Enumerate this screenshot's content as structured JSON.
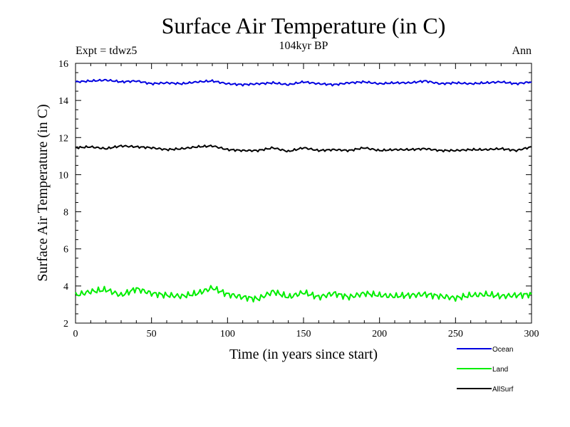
{
  "chart_data": {
    "type": "line",
    "title": "Surface Air Temperature (in C)",
    "subtitle": "104kyr BP",
    "left_note": "Expt = tdwz5",
    "right_note": "Ann",
    "xlabel": "Time (in years since start)",
    "ylabel": "Surface Air Temperature (in C)",
    "xlim": [
      0,
      300
    ],
    "ylim": [
      2,
      16
    ],
    "x_ticks": [
      "0",
      "50",
      "100",
      "150",
      "200",
      "250",
      "300"
    ],
    "y_ticks": [
      "2",
      "4",
      "6",
      "8",
      "10",
      "12",
      "14",
      "16"
    ],
    "grid": false,
    "legend_position": "bottom-right",
    "series": [
      {
        "name": "Ocean",
        "color": "#0000e0",
        "x": [
          0,
          10,
          20,
          30,
          40,
          50,
          60,
          70,
          80,
          90,
          100,
          110,
          120,
          130,
          140,
          150,
          160,
          170,
          180,
          190,
          200,
          210,
          220,
          230,
          240,
          250,
          260,
          270,
          280,
          290,
          300
        ],
        "values": [
          15.0,
          15.05,
          15.1,
          15.0,
          15.05,
          14.9,
          14.95,
          14.9,
          15.0,
          15.05,
          14.9,
          14.85,
          14.9,
          14.95,
          14.85,
          15.0,
          14.9,
          14.85,
          14.95,
          15.0,
          14.9,
          14.95,
          14.95,
          15.05,
          14.9,
          14.95,
          14.9,
          14.95,
          15.0,
          14.9,
          15.0
        ]
      },
      {
        "name": "Land",
        "color": "#00ee00",
        "x": [
          0,
          10,
          20,
          30,
          40,
          50,
          60,
          70,
          80,
          90,
          100,
          110,
          120,
          130,
          140,
          150,
          160,
          170,
          180,
          190,
          200,
          210,
          220,
          230,
          240,
          250,
          260,
          270,
          280,
          290,
          300
        ],
        "values": [
          3.5,
          3.7,
          3.8,
          3.5,
          3.85,
          3.6,
          3.5,
          3.45,
          3.6,
          3.9,
          3.55,
          3.4,
          3.3,
          3.7,
          3.4,
          3.65,
          3.4,
          3.6,
          3.4,
          3.6,
          3.5,
          3.45,
          3.5,
          3.55,
          3.45,
          3.35,
          3.5,
          3.55,
          3.45,
          3.5,
          3.55
        ]
      },
      {
        "name": "AllSurf",
        "color": "#000000",
        "x": [
          0,
          10,
          20,
          30,
          40,
          50,
          60,
          70,
          80,
          90,
          100,
          110,
          120,
          130,
          140,
          150,
          160,
          170,
          180,
          190,
          200,
          210,
          220,
          230,
          240,
          250,
          260,
          270,
          280,
          290,
          300
        ],
        "values": [
          11.45,
          11.5,
          11.4,
          11.55,
          11.5,
          11.45,
          11.35,
          11.4,
          11.5,
          11.55,
          11.35,
          11.3,
          11.3,
          11.45,
          11.25,
          11.45,
          11.3,
          11.35,
          11.3,
          11.45,
          11.3,
          11.35,
          11.35,
          11.4,
          11.3,
          11.3,
          11.35,
          11.35,
          11.4,
          11.3,
          11.5
        ]
      }
    ]
  }
}
